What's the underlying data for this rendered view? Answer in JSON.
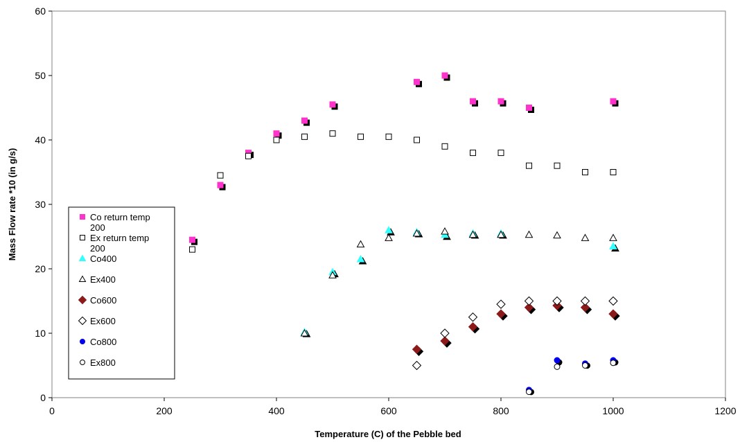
{
  "chart_data": {
    "type": "scatter",
    "title": "",
    "xlabel": "Temperature (C) of the Pebble bed",
    "ylabel": "Mass Flow rate *10 (in g/s)",
    "xlim": [
      0,
      1200
    ],
    "ylim": [
      0,
      60
    ],
    "xticks": [
      0,
      200,
      400,
      600,
      800,
      1000,
      1200
    ],
    "yticks": [
      0,
      10,
      20,
      30,
      40,
      50,
      60
    ],
    "grid": false,
    "legend_position": "left",
    "series": [
      {
        "name": "Co return temp 200",
        "marker": "square",
        "filled": true,
        "color": "#ff33cc",
        "x": [
          250,
          300,
          350,
          400,
          450,
          500,
          650,
          700,
          750,
          800,
          850,
          1000
        ],
        "y": [
          24.5,
          33,
          38,
          41,
          43,
          45.5,
          49,
          50,
          46,
          46,
          45,
          46
        ]
      },
      {
        "name": "Ex return temp 200",
        "marker": "square",
        "filled": false,
        "color": "#000000",
        "x": [
          250,
          300,
          350,
          400,
          450,
          500,
          550,
          600,
          650,
          700,
          750,
          800,
          850,
          900,
          950,
          1000
        ],
        "y": [
          23,
          34.5,
          37.5,
          40,
          40.5,
          41,
          40.5,
          40.5,
          40,
          39,
          38,
          38,
          36,
          36,
          35,
          35
        ]
      },
      {
        "name": "Co400",
        "marker": "triangle",
        "filled": true,
        "color": "#33ffff",
        "x": [
          450,
          500,
          550,
          600,
          650,
          700,
          750,
          800,
          1000
        ],
        "y": [
          10.2,
          19.5,
          21.5,
          26,
          25.7,
          25.3,
          25.5,
          25.5,
          23.5
        ]
      },
      {
        "name": "Ex400",
        "marker": "triangle",
        "filled": false,
        "color": "#000000",
        "x": [
          450,
          500,
          550,
          600,
          650,
          700,
          750,
          800,
          850,
          900,
          950,
          1000
        ],
        "y": [
          10,
          19,
          23.8,
          24.8,
          25.5,
          25.8,
          25.3,
          25.3,
          25.3,
          25.2,
          24.8,
          24.8
        ]
      },
      {
        "name": "Co600",
        "marker": "diamond",
        "filled": true,
        "color": "#8b1a1a",
        "x": [
          650,
          700,
          750,
          800,
          850,
          900,
          950,
          1000
        ],
        "y": [
          7.5,
          8.8,
          11,
          13,
          14,
          14.3,
          14,
          13
        ]
      },
      {
        "name": "Ex600",
        "marker": "diamond",
        "filled": false,
        "color": "#000000",
        "x": [
          650,
          700,
          750,
          800,
          850,
          900,
          950,
          1000
        ],
        "y": [
          5,
          10,
          12.5,
          14.5,
          15,
          15,
          15,
          15
        ]
      },
      {
        "name": "Co800",
        "marker": "circle",
        "filled": true,
        "color": "#0000ee",
        "x": [
          850,
          900,
          950,
          1000
        ],
        "y": [
          1.2,
          5.8,
          5.3,
          5.8
        ]
      },
      {
        "name": "Ex800",
        "marker": "circle",
        "filled": false,
        "color": "#000000",
        "x": [
          850,
          900,
          950,
          1000
        ],
        "y": [
          0.9,
          4.8,
          5,
          5.4
        ]
      }
    ]
  }
}
